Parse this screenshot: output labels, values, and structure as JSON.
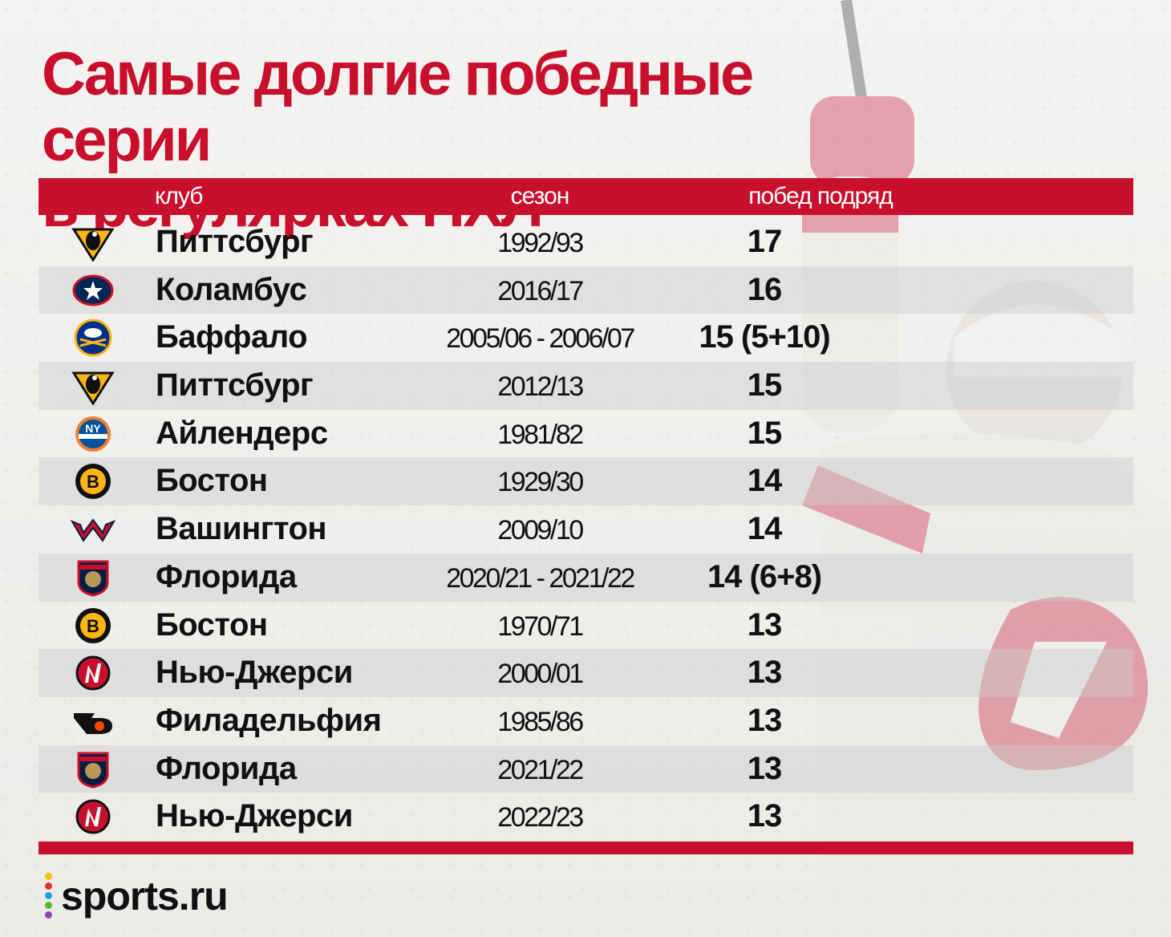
{
  "title": {
    "line1": "Самые долгие победные серии",
    "line2": "в регулярках НХЛ"
  },
  "columns": {
    "club": "клуб",
    "season": "сезон",
    "wins": "побед подряд"
  },
  "rows": [
    {
      "logo": "penguins-logo",
      "club": "Питтсбург",
      "season": "1992/93",
      "wins": "17"
    },
    {
      "logo": "blue-jackets-logo",
      "club": "Коламбус",
      "season": "2016/17",
      "wins": "16"
    },
    {
      "logo": "sabres-logo",
      "club": "Баффало",
      "season": "2005/06 - 2006/07",
      "wins": "15 (5+10)"
    },
    {
      "logo": "penguins-logo",
      "club": "Питтсбург",
      "season": "2012/13",
      "wins": "15"
    },
    {
      "logo": "islanders-logo",
      "club": "Айлендерс",
      "season": "1981/82",
      "wins": "15"
    },
    {
      "logo": "bruins-logo",
      "club": "Бостон",
      "season": "1929/30",
      "wins": "14"
    },
    {
      "logo": "capitals-logo",
      "club": "Вашингтон",
      "season": "2009/10",
      "wins": "14"
    },
    {
      "logo": "panthers-logo",
      "club": "Флорида",
      "season": "2020/21 - 2021/22",
      "wins": "14 (6+8)"
    },
    {
      "logo": "bruins-logo",
      "club": "Бостон",
      "season": "1970/71",
      "wins": "13"
    },
    {
      "logo": "devils-logo",
      "club": "Нью-Джерси",
      "season": "2000/01",
      "wins": "13"
    },
    {
      "logo": "flyers-logo",
      "club": "Филадельфия",
      "season": "1985/86",
      "wins": "13"
    },
    {
      "logo": "panthers-logo",
      "club": "Флорида",
      "season": "2021/22",
      "wins": "13"
    },
    {
      "logo": "devils-logo",
      "club": "Нью-Джерси",
      "season": "2022/23",
      "wins": "13"
    }
  ],
  "brand": "sports.ru",
  "colors": {
    "accent": "#c8102e",
    "text": "#111111",
    "row_shade": "#d9d9d9",
    "background": "#f1f0ee"
  }
}
